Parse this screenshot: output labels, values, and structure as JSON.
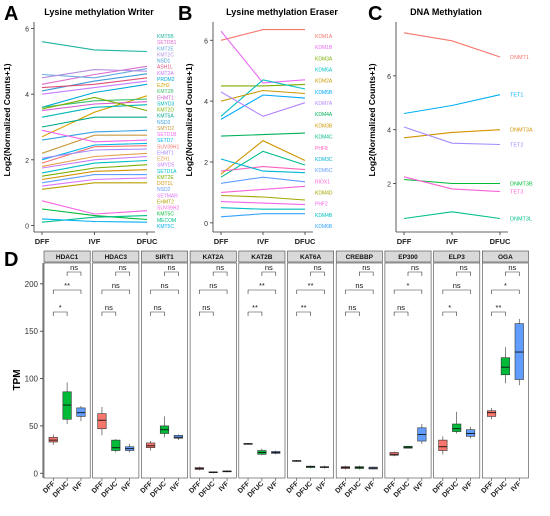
{
  "panel_letters": [
    "A",
    "B",
    "C",
    "D"
  ],
  "chart_data": [
    {
      "panel": "A",
      "type": "line",
      "title": "Lysine methylation Writer",
      "ylabel": "Log2(Normalized Counts+1)",
      "categories": [
        "DFF",
        "IVF",
        "DFUC"
      ],
      "ylim": [
        -0.2,
        6.2
      ],
      "yticks": [
        0,
        2,
        4,
        6
      ],
      "series": [
        {
          "name": "KMT5B",
          "values": [
            5.6,
            5.35,
            5.3
          ],
          "color": "#1fb5a0"
        },
        {
          "name": "SETDB1",
          "values": [
            4.3,
            4.6,
            4.85
          ],
          "color": "#e06bd0"
        },
        {
          "name": "KMT2E",
          "values": [
            4.6,
            4.5,
            4.78
          ],
          "color": "#66aadd"
        },
        {
          "name": "KMT2C",
          "values": [
            4.5,
            4.75,
            4.7
          ],
          "color": "#b58ee0"
        },
        {
          "name": "NSD1",
          "values": [
            4.1,
            4.4,
            4.62
          ],
          "color": "#3c9ad6"
        },
        {
          "name": "ASH1L",
          "values": [
            4.2,
            4.3,
            4.5
          ],
          "color": "#e0507a"
        },
        {
          "name": "KMT2A",
          "values": [
            4.0,
            4.2,
            4.4
          ],
          "color": "#c77cff"
        },
        {
          "name": "PRDM2",
          "values": [
            3.6,
            4.05,
            4.3
          ],
          "color": "#00a9d6"
        },
        {
          "name": "EZH2",
          "values": [
            2.7,
            3.45,
            3.95
          ],
          "color": "#d8a200"
        },
        {
          "name": "KMT2B",
          "values": [
            3.6,
            3.8,
            3.85
          ],
          "color": "#40c070"
        },
        {
          "name": "EHMT1",
          "values": [
            3.5,
            3.7,
            3.77
          ],
          "color": "#d45fd0"
        },
        {
          "name": "SMYD3",
          "values": [
            3.3,
            3.6,
            3.68
          ],
          "color": "#00b8b8"
        },
        {
          "name": "KMT2D",
          "values": [
            3.55,
            3.9,
            3.5
          ],
          "color": "#7cae00"
        },
        {
          "name": "KMT5A",
          "values": [
            3.0,
            3.3,
            3.3
          ],
          "color": "#00a891"
        },
        {
          "name": "NSD3",
          "values": [
            2.6,
            2.85,
            2.9
          ],
          "color": "#3aa0e0"
        },
        {
          "name": "SMYD2",
          "values": [
            2.2,
            2.75,
            2.75
          ],
          "color": "#c89a40"
        },
        {
          "name": "SETD1B",
          "values": [
            2.9,
            2.55,
            2.6
          ],
          "color": "#ef67eb"
        },
        {
          "name": "SETD7",
          "values": [
            2.0,
            2.45,
            2.5
          ],
          "color": "#00b6eb"
        },
        {
          "name": "SUV39H1",
          "values": [
            1.9,
            2.4,
            2.43
          ],
          "color": "#f8766d"
        },
        {
          "name": "EHMT1_",
          "values": [
            2.05,
            2.3,
            2.33
          ],
          "color": "#a58aff"
        },
        {
          "name": "EZH1",
          "values": [
            1.8,
            2.1,
            2.2
          ],
          "color": "#e6a14a"
        },
        {
          "name": "SMYD5",
          "values": [
            1.75,
            2.0,
            2.1
          ],
          "color": "#c77cff"
        },
        {
          "name": "SETD1A",
          "values": [
            1.6,
            1.9,
            1.98
          ],
          "color": "#00bfc4"
        },
        {
          "name": "KMT2E_",
          "values": [
            1.5,
            1.75,
            1.85
          ],
          "color": "#7cae00"
        },
        {
          "name": "DOT1L",
          "values": [
            1.4,
            1.65,
            1.7
          ],
          "color": "#d39200"
        },
        {
          "name": "NSD2",
          "values": [
            1.3,
            1.55,
            1.55
          ],
          "color": "#619cff"
        },
        {
          "name": "SETMAR",
          "values": [
            1.2,
            1.4,
            1.45
          ],
          "color": "#db72fb"
        },
        {
          "name": "EHMT2",
          "values": [
            1.1,
            1.3,
            1.3
          ],
          "color": "#b79f00"
        },
        {
          "name": "SUV39H2",
          "values": [
            0.75,
            0.35,
            0.45
          ],
          "color": "#f564e3"
        },
        {
          "name": "KMT5C",
          "values": [
            0.5,
            0.3,
            0.18
          ],
          "color": "#00ba38"
        },
        {
          "name": "MECOM",
          "values": [
            0.1,
            0.25,
            0.3
          ],
          "color": "#00c08b"
        },
        {
          "name": "KMT5C_",
          "values": [
            0.2,
            0.12,
            0.1
          ],
          "color": "#00b0f6"
        }
      ],
      "right_labels": [
        "KMT5B",
        "SETDB1",
        "KMT2E",
        "KMT2C",
        "NSD1",
        "ASH1L",
        "KMT2A",
        "PRDM2",
        "EZH2",
        "KMT2B",
        "EHMT1",
        "SMYD3",
        "KMT2D",
        "KMT5A",
        "NSD3",
        "SMYD2",
        "SETD1B",
        "SETD7",
        "SUV39H1",
        "EHMT1",
        "EZH1",
        "SMYD5",
        "SETD1A",
        "KMT2E",
        "DOT1L",
        "NSD2",
        "SETMAR",
        "EHMT2",
        "SUV39H2",
        "KMT5C",
        "MECOM",
        "KMT5C"
      ]
    },
    {
      "panel": "B",
      "type": "line",
      "title": "Lysine methylation Eraser",
      "ylabel": "Log2(Normalized Counts+1)",
      "categories": [
        "DFF",
        "IVF",
        "DFUC"
      ],
      "ylim": [
        -0.3,
        6.6
      ],
      "yticks": [
        0,
        2,
        4,
        6
      ],
      "series": [
        {
          "name": "KDM1A",
          "values": [
            6.0,
            6.35,
            6.35
          ],
          "color": "#f8766d"
        },
        {
          "name": "KDM1B",
          "values": [
            6.3,
            4.6,
            4.7
          ],
          "color": "#e76bf3"
        },
        {
          "name": "KDM3A",
          "values": [
            4.5,
            4.5,
            4.55
          ],
          "color": "#7cae00"
        },
        {
          "name": "KDM5A",
          "values": [
            3.5,
            4.7,
            4.4
          ],
          "color": "#00bfc4"
        },
        {
          "name": "KDM2A",
          "values": [
            4.0,
            4.35,
            4.25
          ],
          "color": "#c99800"
        },
        {
          "name": "KDM5B",
          "values": [
            3.4,
            4.2,
            4.1
          ],
          "color": "#00a9ff"
        },
        {
          "name": "KDM7A",
          "values": [
            4.3,
            3.5,
            3.95
          ],
          "color": "#b385ff"
        },
        {
          "name": "KDM4A",
          "values": [
            2.85,
            2.9,
            2.95
          ],
          "color": "#00b159"
        },
        {
          "name": "KDM3B",
          "values": [
            1.6,
            2.7,
            2.05
          ],
          "color": "#cd9600"
        },
        {
          "name": "KDM4C",
          "values": [
            1.5,
            2.35,
            1.9
          ],
          "color": "#00bc8c"
        },
        {
          "name": "PHF8",
          "values": [
            1.7,
            1.85,
            1.75
          ],
          "color": "#ff62bc"
        },
        {
          "name": "KDM3C",
          "values": [
            2.1,
            1.7,
            1.65
          ],
          "color": "#00b3d6"
        },
        {
          "name": "KDM5C",
          "values": [
            1.3,
            1.5,
            1.35
          ],
          "color": "#619cff"
        },
        {
          "name": "RIOX1",
          "values": [
            1.0,
            1.1,
            1.2
          ],
          "color": "#fa62db"
        },
        {
          "name": "KDM4D",
          "values": [
            0.9,
            0.85,
            0.75
          ],
          "color": "#a3a500"
        },
        {
          "name": "PHF2",
          "values": [
            0.7,
            0.65,
            0.6
          ],
          "color": "#f066ea"
        },
        {
          "name": "KDM4B",
          "values": [
            0.5,
            0.45,
            0.45
          ],
          "color": "#00bfc4"
        },
        {
          "name": "KDM6B",
          "values": [
            0.2,
            0.3,
            0.3
          ],
          "color": "#35a2ff"
        }
      ],
      "right_labels": [
        "KDM1A",
        "KDM1B",
        "KDM3A",
        "KDM5A",
        "KDM2A",
        "KDM5B",
        "KDM7A",
        "KDM4A",
        "KDM3B",
        "KDM4C",
        "PHF8",
        "KDM3C",
        "KDM5C",
        "RIOX1",
        "KDM4D",
        "PHF2",
        "KDM4B",
        "KDM6B"
      ]
    },
    {
      "panel": "C",
      "type": "line",
      "title": "DNA Methylation",
      "ylabel": "Log2(Normalized Counts+1)",
      "categories": [
        "DFF",
        "IVF",
        "DFUC"
      ],
      "ylim": [
        0.2,
        8.0
      ],
      "yticks": [
        2,
        4,
        6
      ],
      "series": [
        {
          "name": "DNMT1",
          "values": [
            7.6,
            7.3,
            6.7
          ],
          "color": "#f8766d"
        },
        {
          "name": "TET1",
          "values": [
            4.6,
            4.9,
            5.3
          ],
          "color": "#00b0f6"
        },
        {
          "name": "DNMT3A",
          "values": [
            3.7,
            3.9,
            4.0
          ],
          "color": "#d39200"
        },
        {
          "name": "TET2",
          "values": [
            4.1,
            3.5,
            3.45
          ],
          "color": "#a58aff"
        },
        {
          "name": "DNMT3B",
          "values": [
            2.15,
            2.0,
            2.0
          ],
          "color": "#00ba38"
        },
        {
          "name": "TET3",
          "values": [
            2.25,
            1.8,
            1.7
          ],
          "color": "#fc61d5"
        },
        {
          "name": "DNMT3L",
          "values": [
            0.7,
            0.95,
            0.7
          ],
          "color": "#00c08b"
        }
      ]
    },
    {
      "panel": "D",
      "type": "box",
      "ylabel": "TPM",
      "ylim": [
        -5,
        222
      ],
      "yticks": [
        0,
        50,
        100,
        150,
        200
      ],
      "groups": [
        "DFF",
        "DFUC",
        "IVF"
      ],
      "group_colors": {
        "DFF": "#f8766d",
        "DFUC": "#00ba38",
        "IVF": "#619cff"
      },
      "panels": [
        {
          "gene": "HDAC1",
          "boxes": [
            [
              30,
              33,
              35,
              38,
              41
            ],
            [
              52,
              57,
              72,
              86,
              96
            ],
            [
              55,
              60,
              64,
              69,
              71
            ]
          ],
          "sig": [
            "*",
            "**",
            "ns"
          ]
        },
        {
          "gene": "HDAC3",
          "boxes": [
            [
              40,
              47,
              56,
              63,
              70
            ],
            [
              22,
              24,
              27,
              35,
              36
            ],
            [
              22,
              24,
              26,
              28,
              31
            ]
          ],
          "sig": [
            "ns",
            "ns",
            "ns"
          ]
        },
        {
          "gene": "SIRT1",
          "boxes": [
            [
              24,
              27,
              29,
              32,
              34
            ],
            [
              38,
              42,
              46,
              50,
              60
            ],
            [
              35,
              37,
              38,
              40,
              41
            ]
          ],
          "sig": [
            "ns",
            "ns",
            "ns"
          ]
        },
        {
          "gene": "KAT2A",
          "boxes": [
            [
              3,
              4,
              5,
              6,
              7
            ],
            [
              0,
              1,
              1,
              1.5,
              2
            ],
            [
              1,
              1.5,
              2,
              2.5,
              3
            ]
          ],
          "sig": [
            "ns",
            "ns",
            "ns"
          ]
        },
        {
          "gene": "KAT2B",
          "boxes": [
            [
              30,
              30.5,
              31,
              31.5,
              32
            ],
            [
              19,
              20,
              22,
              24,
              26
            ],
            [
              20,
              21,
              22,
              23,
              24
            ]
          ],
          "sig": [
            "**",
            "**",
            "ns"
          ]
        },
        {
          "gene": "KAT6A",
          "boxes": [
            [
              12,
              12.5,
              13,
              13.5,
              14
            ],
            [
              5,
              6,
              7,
              7.5,
              8
            ],
            [
              5,
              6,
              6.5,
              7,
              8
            ]
          ],
          "sig": [
            "**",
            "**",
            "ns"
          ]
        },
        {
          "gene": "CREBBP",
          "boxes": [
            [
              4,
              5,
              6,
              7,
              8
            ],
            [
              4,
              5,
              6,
              7,
              8
            ],
            [
              4,
              4.5,
              5.5,
              6.5,
              7
            ]
          ],
          "sig": [
            "ns",
            "ns",
            "ns"
          ]
        },
        {
          "gene": "EP300",
          "boxes": [
            [
              18,
              19,
              20,
              22,
              23
            ],
            [
              26,
              26.5,
              27.5,
              28.5,
              29
            ],
            [
              31,
              34,
              41,
              48,
              52
            ]
          ],
          "sig": [
            "ns",
            "*",
            "ns"
          ]
        },
        {
          "gene": "ELP3",
          "boxes": [
            [
              20,
              24,
              28,
              35,
              39
            ],
            [
              42,
              44,
              47,
              52,
              65
            ],
            [
              37,
              39,
              42,
              46,
              49
            ]
          ],
          "sig": [
            "*",
            "ns",
            "ns"
          ]
        },
        {
          "gene": "OGA",
          "boxes": [
            [
              57,
              60,
              64,
              66,
              69
            ],
            [
              95,
              104,
              112,
              122,
              133
            ],
            [
              93,
              99,
              128,
              158,
              163
            ]
          ],
          "sig": [
            "**",
            "*",
            "ns"
          ]
        }
      ]
    }
  ]
}
